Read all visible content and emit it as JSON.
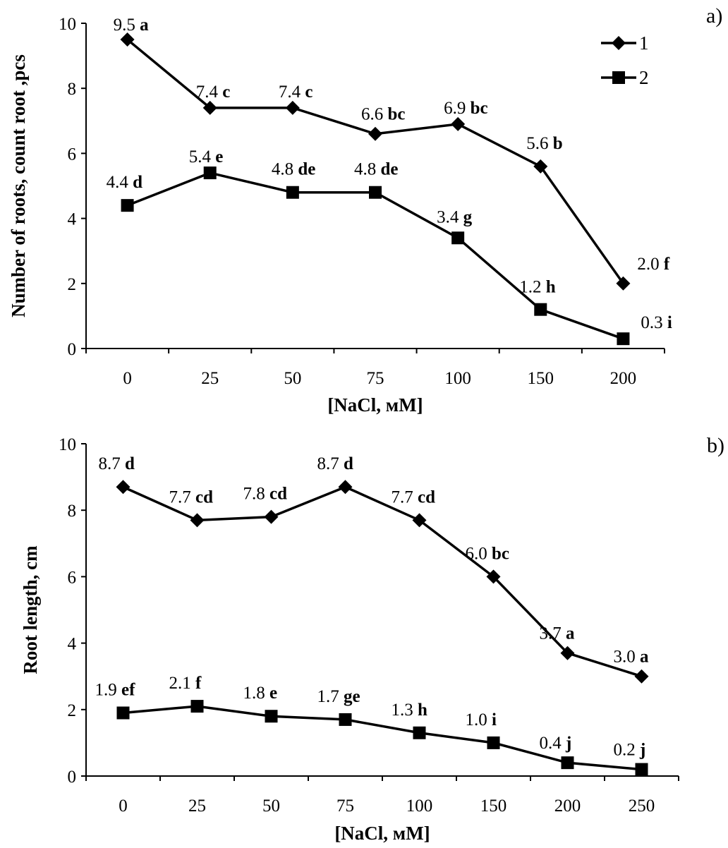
{
  "chart_data": [
    {
      "type": "line",
      "panel_label": "a)",
      "xlabel": "[NaCl, мМ]",
      "ylabel": "Number of roots,  count root ,pcs",
      "categories": [
        "0",
        "25",
        "50",
        "75",
        "100",
        "150",
        "200"
      ],
      "ylim": [
        0,
        10
      ],
      "yticks": [
        "0",
        "2",
        "4",
        "6",
        "8",
        "10"
      ],
      "legend": {
        "position": "top-right",
        "entries": [
          "1",
          "2"
        ]
      },
      "series": [
        {
          "name": "1",
          "marker": "diamond",
          "values": [
            9.5,
            7.4,
            7.4,
            6.6,
            6.9,
            5.6,
            2.0
          ],
          "labels": [
            "9.5",
            "7.4",
            "7.4",
            "6.6",
            "6.9",
            "5.6",
            "2.0"
          ],
          "letters": [
            "a",
            "c",
            "c",
            "bc",
            "bc",
            "b",
            "f"
          ]
        },
        {
          "name": "2",
          "marker": "square",
          "values": [
            4.4,
            5.4,
            4.8,
            4.8,
            3.4,
            1.2,
            0.3
          ],
          "labels": [
            "4.4",
            "5.4",
            "4.8",
            "4.8",
            "3.4",
            "1.2",
            "0.3"
          ],
          "letters": [
            "d",
            "e",
            "de",
            "de",
            "g",
            "h",
            "i"
          ]
        }
      ]
    },
    {
      "type": "line",
      "panel_label": "b)",
      "xlabel": "[NaCl, мМ]",
      "ylabel": "Root length, cm",
      "categories": [
        "0",
        "25",
        "50",
        "75",
        "100",
        "150",
        "200",
        "250"
      ],
      "ylim": [
        0,
        10
      ],
      "yticks": [
        "0",
        "2",
        "4",
        "6",
        "8",
        "10"
      ],
      "series": [
        {
          "name": "1",
          "marker": "diamond",
          "values": [
            8.7,
            7.7,
            7.8,
            8.7,
            7.7,
            6.0,
            3.7,
            3.0
          ],
          "labels": [
            "8.7",
            "7.7",
            "7.8",
            "8.7",
            "7.7",
            "6.0",
            "3.7",
            "3.0"
          ],
          "letters": [
            "d",
            "cd",
            "cd",
            "d",
            "cd",
            "bc",
            "a",
            "a"
          ]
        },
        {
          "name": "2",
          "marker": "square",
          "values": [
            1.9,
            2.1,
            1.8,
            1.7,
            1.3,
            1.0,
            0.4,
            0.2
          ],
          "labels": [
            "1.9",
            "2.1",
            "1.8",
            "1.7",
            "1.3",
            "1.0",
            "0.4",
            "0.2"
          ],
          "letters": [
            "ef",
            "f",
            "e",
            "ge",
            "h",
            "i",
            "j",
            "j"
          ]
        }
      ]
    }
  ]
}
